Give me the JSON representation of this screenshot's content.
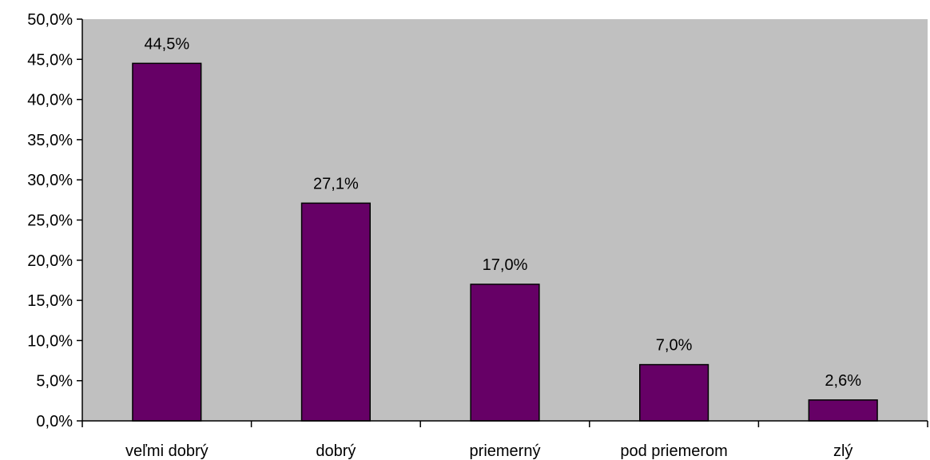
{
  "chart_data": {
    "type": "bar",
    "title": "",
    "xlabel": "",
    "ylabel": "",
    "categories": [
      "veľmi dobrý",
      "dobrý",
      "priemerný",
      "pod priemerom",
      "zlý"
    ],
    "values": [
      44.5,
      27.1,
      17.0,
      7.0,
      2.6
    ],
    "data_labels": [
      "44,5%",
      "27,1%",
      "17,0%",
      "7,0%",
      "2,6%"
    ],
    "ylim": [
      0,
      50
    ],
    "yticks": [
      0,
      5,
      10,
      15,
      20,
      25,
      30,
      35,
      40,
      45,
      50
    ],
    "ytick_labels": [
      "0,0%",
      "5,0%",
      "10,0%",
      "15,0%",
      "20,0%",
      "25,0%",
      "30,0%",
      "35,0%",
      "40,0%",
      "45,0%",
      "50,0%"
    ],
    "grid": false,
    "legend": "none",
    "colors": {
      "bar_fill": "#660066",
      "bar_stroke": "#000000",
      "plot_background": "#c0c0c0",
      "axis": "#000000"
    }
  }
}
